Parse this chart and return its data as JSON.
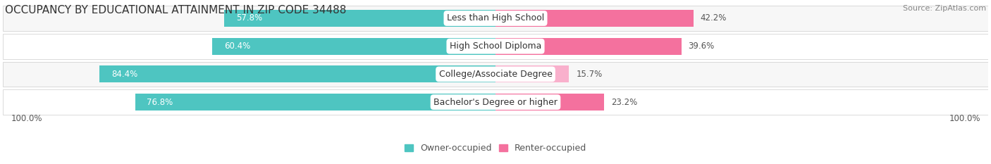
{
  "title": "OCCUPANCY BY EDUCATIONAL ATTAINMENT IN ZIP CODE 34488",
  "source": "Source: ZipAtlas.com",
  "categories": [
    "Less than High School",
    "High School Diploma",
    "College/Associate Degree",
    "Bachelor's Degree or higher"
  ],
  "owner_values": [
    57.8,
    60.4,
    84.4,
    76.8
  ],
  "renter_values": [
    42.2,
    39.6,
    15.7,
    23.2
  ],
  "owner_color": "#4EC5C1",
  "renter_color": "#F4719E",
  "renter_color_light": "#F9B0CC",
  "row_bg_odd": "#F7F7F7",
  "row_bg_even": "#FFFFFF",
  "label_color": "#555555",
  "title_fontsize": 11,
  "source_fontsize": 8,
  "bar_label_fontsize": 8.5,
  "cat_label_fontsize": 9,
  "legend_fontsize": 9,
  "axis_label_fontsize": 8.5,
  "legend_owner": "Owner-occupied",
  "legend_renter": "Renter-occupied",
  "axis_label": "100.0%"
}
